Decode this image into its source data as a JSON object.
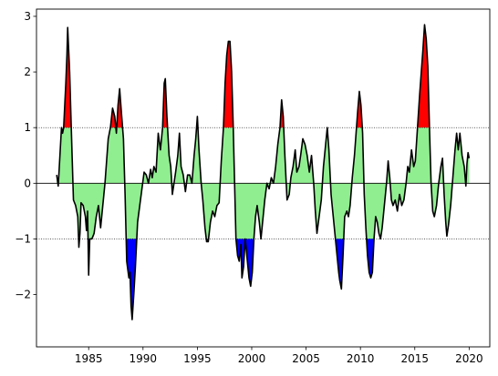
{
  "chart_data": {
    "type": "line",
    "x": [
      1982.06,
      1982.2,
      1982.5,
      1982.6,
      1982.7,
      1982.9,
      1983.0,
      1983.07,
      1983.25,
      1983.4,
      1983.6,
      1983.8,
      1984.0,
      1984.1,
      1984.2,
      1984.3,
      1984.5,
      1984.7,
      1984.8,
      1984.9,
      1985.0,
      1985.1,
      1985.3,
      1985.5,
      1985.7,
      1985.9,
      1986.1,
      1986.3,
      1986.5,
      1986.8,
      1987.0,
      1987.2,
      1987.4,
      1987.55,
      1987.7,
      1987.85,
      1988.0,
      1988.2,
      1988.35,
      1988.5,
      1988.7,
      1988.8,
      1988.9,
      1989.0,
      1989.15,
      1989.3,
      1989.5,
      1989.7,
      1989.9,
      1990.1,
      1990.3,
      1990.5,
      1990.7,
      1990.85,
      1991.0,
      1991.2,
      1991.4,
      1991.6,
      1991.8,
      1991.95,
      1992.05,
      1992.2,
      1992.4,
      1992.55,
      1992.7,
      1992.85,
      1993.0,
      1993.2,
      1993.35,
      1993.5,
      1993.7,
      1993.9,
      1994.1,
      1994.3,
      1994.5,
      1994.7,
      1994.85,
      1995.0,
      1995.15,
      1995.35,
      1995.5,
      1995.7,
      1995.85,
      1996.0,
      1996.2,
      1996.4,
      1996.6,
      1996.8,
      1997.0,
      1997.2,
      1997.4,
      1997.55,
      1997.7,
      1997.85,
      1998.0,
      1998.15,
      1998.3,
      1998.45,
      1998.55,
      1998.7,
      1998.85,
      1999.0,
      1999.1,
      1999.25,
      1999.4,
      1999.55,
      1999.75,
      1999.9,
      2000.05,
      2000.2,
      2000.35,
      2000.5,
      2000.7,
      2000.85,
      2001.0,
      2001.2,
      2001.4,
      2001.6,
      2001.8,
      2002.0,
      2002.2,
      2002.4,
      2002.6,
      2002.75,
      2002.9,
      2003.05,
      2003.25,
      2003.45,
      2003.6,
      2003.8,
      2004.0,
      2004.15,
      2004.35,
      2004.5,
      2004.7,
      2004.9,
      2005.1,
      2005.3,
      2005.5,
      2005.7,
      2005.85,
      2006.0,
      2006.2,
      2006.4,
      2006.6,
      2006.8,
      2006.95,
      2007.1,
      2007.3,
      2007.45,
      2007.65,
      2007.85,
      2008.0,
      2008.1,
      2008.25,
      2008.4,
      2008.55,
      2008.75,
      2008.9,
      2009.05,
      2009.25,
      2009.45,
      2009.6,
      2009.75,
      2009.9,
      2010.05,
      2010.2,
      2010.35,
      2010.5,
      2010.65,
      2010.8,
      2010.95,
      2011.1,
      2011.25,
      2011.4,
      2011.55,
      2011.7,
      2011.85,
      2012.0,
      2012.2,
      2012.4,
      2012.55,
      2012.7,
      2012.85,
      2013.0,
      2013.2,
      2013.4,
      2013.6,
      2013.8,
      2014.0,
      2014.2,
      2014.35,
      2014.5,
      2014.7,
      2014.9,
      2015.05,
      2015.25,
      2015.45,
      2015.6,
      2015.75,
      2015.9,
      2016.05,
      2016.2,
      2016.35,
      2016.5,
      2016.65,
      2016.8,
      2017.0,
      2017.2,
      2017.4,
      2017.55,
      2017.7,
      2017.85,
      2017.95,
      2018.1,
      2018.3,
      2018.5,
      2018.7,
      2018.85,
      2019.0,
      2019.15,
      2019.35,
      2019.55,
      2019.7,
      2019.8,
      2019.9,
      2020.0
    ],
    "values": [
      0.15,
      -0.05,
      1.0,
      0.9,
      1.0,
      1.8,
      2.3,
      2.8,
      2.0,
      1.0,
      -0.3,
      -0.4,
      -0.6,
      -1.15,
      -0.9,
      -0.35,
      -0.4,
      -0.6,
      -0.85,
      -0.5,
      -1.65,
      -1.0,
      -1.0,
      -0.9,
      -0.6,
      -0.4,
      -0.8,
      -0.4,
      0.0,
      0.8,
      1.0,
      1.35,
      1.2,
      0.9,
      1.4,
      1.7,
      1.3,
      0.8,
      -0.2,
      -1.4,
      -1.7,
      -1.6,
      -2.2,
      -2.45,
      -2.0,
      -1.5,
      -0.7,
      -0.4,
      -0.1,
      0.2,
      0.15,
      0.0,
      0.25,
      0.1,
      0.3,
      0.2,
      0.9,
      0.6,
      1.0,
      1.8,
      1.88,
      1.2,
      0.5,
      0.3,
      -0.2,
      0.0,
      0.2,
      0.5,
      0.9,
      0.3,
      0.15,
      -0.15,
      0.15,
      0.15,
      0.0,
      0.5,
      0.8,
      1.2,
      0.6,
      0.0,
      -0.3,
      -0.8,
      -1.05,
      -1.05,
      -0.7,
      -0.5,
      -0.6,
      -0.4,
      -0.35,
      0.4,
      1.0,
      1.8,
      2.3,
      2.55,
      2.55,
      2.0,
      1.0,
      -0.2,
      -1.0,
      -1.3,
      -1.4,
      -1.1,
      -1.7,
      -1.5,
      -1.0,
      -1.3,
      -1.7,
      -1.85,
      -1.6,
      -1.0,
      -0.6,
      -0.4,
      -0.7,
      -1.0,
      -0.7,
      -0.3,
      0.0,
      -0.1,
      0.1,
      0.0,
      0.3,
      0.7,
      1.0,
      1.5,
      1.2,
      0.5,
      -0.3,
      -0.2,
      0.1,
      0.3,
      0.6,
      0.2,
      0.3,
      0.5,
      0.8,
      0.7,
      0.5,
      0.2,
      0.5,
      0.0,
      -0.5,
      -0.9,
      -0.6,
      -0.3,
      0.3,
      0.7,
      1.0,
      0.6,
      -0.2,
      -0.5,
      -0.9,
      -1.3,
      -1.6,
      -1.75,
      -1.9,
      -1.3,
      -0.6,
      -0.5,
      -0.6,
      -0.4,
      0.1,
      0.5,
      0.9,
      1.3,
      1.65,
      1.4,
      0.9,
      -0.2,
      -0.8,
      -1.3,
      -1.6,
      -1.7,
      -1.6,
      -1.0,
      -0.6,
      -0.7,
      -0.9,
      -1.0,
      -0.8,
      -0.4,
      0.0,
      0.4,
      0.1,
      -0.3,
      -0.4,
      -0.3,
      -0.5,
      -0.2,
      -0.4,
      -0.3,
      0.0,
      0.3,
      0.2,
      0.6,
      0.3,
      0.4,
      1.0,
      1.6,
      2.0,
      2.4,
      2.85,
      2.6,
      2.1,
      1.0,
      0.0,
      -0.5,
      -0.6,
      -0.4,
      0.0,
      0.3,
      0.45,
      -0.2,
      -0.7,
      -0.95,
      -0.75,
      -0.4,
      0.1,
      0.6,
      0.9,
      0.6,
      0.9,
      0.5,
      0.3,
      -0.05,
      0.35,
      0.55,
      0.45
    ],
    "color": "#000000",
    "baseline": 0,
    "upper_threshold": 1,
    "lower_threshold": -1,
    "fill_color": "#90ee90",
    "above_color": "#ff0000",
    "below_color": "#0000ff",
    "xlim": [
      1980.2,
      2021.9
    ],
    "ylim": [
      -2.94,
      3.13
    ],
    "xticks": [
      1985,
      1990,
      1995,
      2000,
      2005,
      2010,
      2015,
      2020
    ],
    "yticks": [
      {
        "value": -2,
        "label": "−2"
      },
      {
        "value": -1,
        "label": "−1"
      },
      0,
      1,
      2,
      3
    ]
  }
}
